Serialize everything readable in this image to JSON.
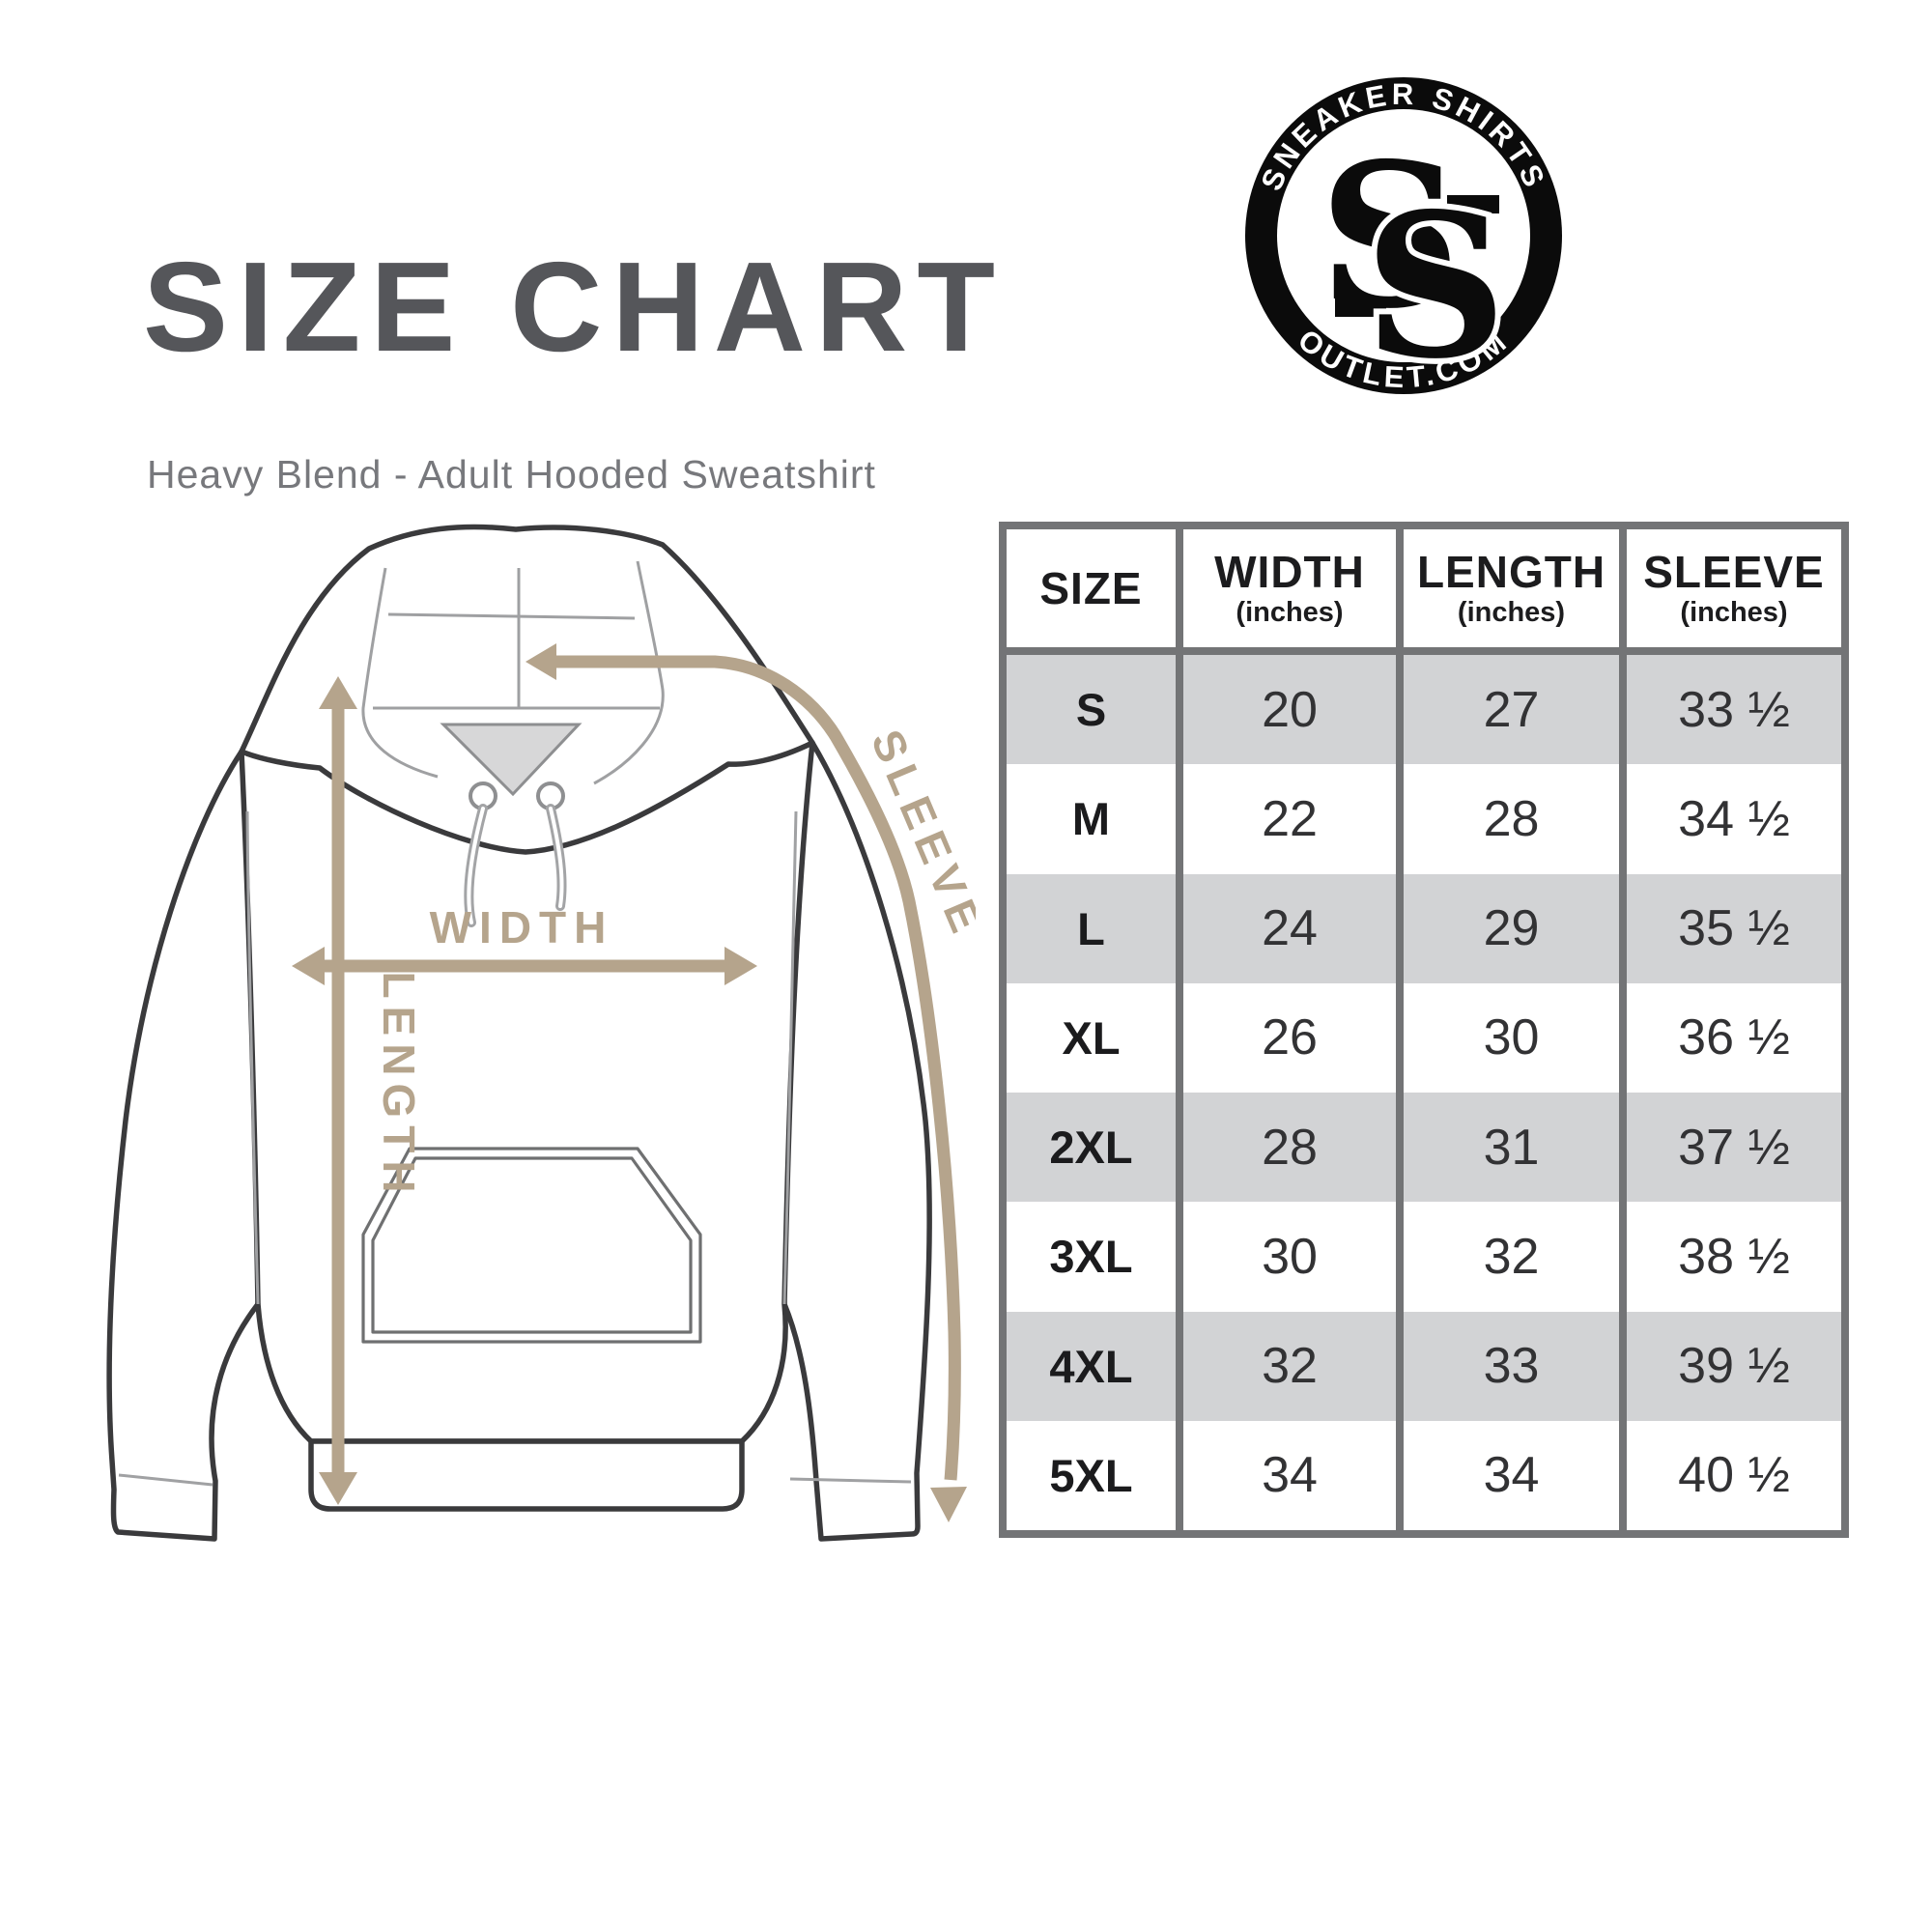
{
  "page": {
    "title": "SIZE CHART",
    "subtitle": "Heavy Blend - Adult Hooded Sweatshirt"
  },
  "logo": {
    "top_text": "SNEAKER SHIRTS",
    "bottom_text": "OUTLET.COM",
    "monogram_back": "S",
    "monogram_front": "S",
    "ring_color": "#0b0b0b",
    "text_color": "#ffffff"
  },
  "diagram": {
    "garment": "hooded sweatshirt line drawing",
    "labels": {
      "width": "WIDTH",
      "length": "LENGTH",
      "sleeve": "SLEEVE"
    },
    "arrow_color": "#b5a48c",
    "outline_color": "#3a3a3c"
  },
  "size_chart": {
    "grid_color": "#737476",
    "shade_color": "#d2d3d5",
    "columns": [
      {
        "label": "SIZE",
        "sub": ""
      },
      {
        "label": "WIDTH",
        "sub": "(inches)"
      },
      {
        "label": "LENGTH",
        "sub": "(inches)"
      },
      {
        "label": "SLEEVE",
        "sub": "(inches)"
      }
    ],
    "rows": [
      {
        "size": "S",
        "width": "20",
        "length": "27",
        "sleeve": "33 ½"
      },
      {
        "size": "M",
        "width": "22",
        "length": "28",
        "sleeve": "34 ½"
      },
      {
        "size": "L",
        "width": "24",
        "length": "29",
        "sleeve": "35 ½"
      },
      {
        "size": "XL",
        "width": "26",
        "length": "30",
        "sleeve": "36 ½"
      },
      {
        "size": "2XL",
        "width": "28",
        "length": "31",
        "sleeve": "37 ½"
      },
      {
        "size": "3XL",
        "width": "30",
        "length": "32",
        "sleeve": "38 ½"
      },
      {
        "size": "4XL",
        "width": "32",
        "length": "33",
        "sleeve": "39 ½"
      },
      {
        "size": "5XL",
        "width": "34",
        "length": "34",
        "sleeve": "40 ½"
      }
    ]
  },
  "chart_data": {
    "type": "table",
    "title": "SIZE CHART",
    "subtitle": "Heavy Blend - Adult Hooded Sweatshirt",
    "columns": [
      "SIZE",
      "WIDTH (inches)",
      "LENGTH (inches)",
      "SLEEVE (inches)"
    ],
    "rows": [
      [
        "S",
        20,
        27,
        33.5
      ],
      [
        "M",
        22,
        28,
        34.5
      ],
      [
        "L",
        24,
        29,
        35.5
      ],
      [
        "XL",
        26,
        30,
        36.5
      ],
      [
        "2XL",
        28,
        31,
        37.5
      ],
      [
        "3XL",
        30,
        32,
        38.5
      ],
      [
        "4XL",
        32,
        33,
        39.5
      ],
      [
        "5XL",
        34,
        34,
        40.5
      ]
    ],
    "sleeve_display": [
      "33 ½",
      "34 ½",
      "35 ½",
      "36 ½",
      "37 ½",
      "38 ½",
      "39 ½",
      "40 ½"
    ]
  }
}
